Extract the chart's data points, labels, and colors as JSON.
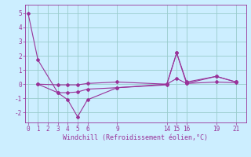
{
  "xlabel": "Windchill (Refroidissement éolien,°C)",
  "bg_color": "#cceeff",
  "line_color": "#993399",
  "grid_color": "#99cccc",
  "xticks": [
    0,
    1,
    2,
    3,
    4,
    5,
    6,
    9,
    14,
    15,
    16,
    19,
    21
  ],
  "yticks": [
    -2,
    -1,
    0,
    1,
    2,
    3,
    4,
    5
  ],
  "xlim": [
    -0.3,
    22
  ],
  "ylim": [
    -2.7,
    5.6
  ],
  "line1_x": [
    0,
    1,
    3,
    4,
    5,
    6,
    9,
    14,
    15,
    16,
    19,
    21
  ],
  "line1_y": [
    5.0,
    1.7,
    -0.6,
    -1.1,
    -2.3,
    -1.1,
    -0.25,
    -0.05,
    2.2,
    0.15,
    0.55,
    0.15
  ],
  "line2_x": [
    1,
    3,
    4,
    5,
    6,
    9,
    14,
    15,
    16,
    19,
    21
  ],
  "line2_y": [
    0.0,
    -0.05,
    -0.05,
    -0.05,
    0.05,
    0.15,
    0.0,
    0.4,
    0.05,
    0.15,
    0.1
  ],
  "line3_x": [
    1,
    3,
    4,
    5,
    6,
    9,
    14,
    15,
    16,
    19,
    21
  ],
  "line3_y": [
    0.0,
    -0.6,
    -0.6,
    -0.55,
    -0.35,
    -0.25,
    0.0,
    2.2,
    0.05,
    0.55,
    0.15
  ],
  "marker": "D",
  "markersize": 2.0,
  "linewidth": 0.8,
  "tick_fontsize": 5.5,
  "xlabel_fontsize": 6.0
}
